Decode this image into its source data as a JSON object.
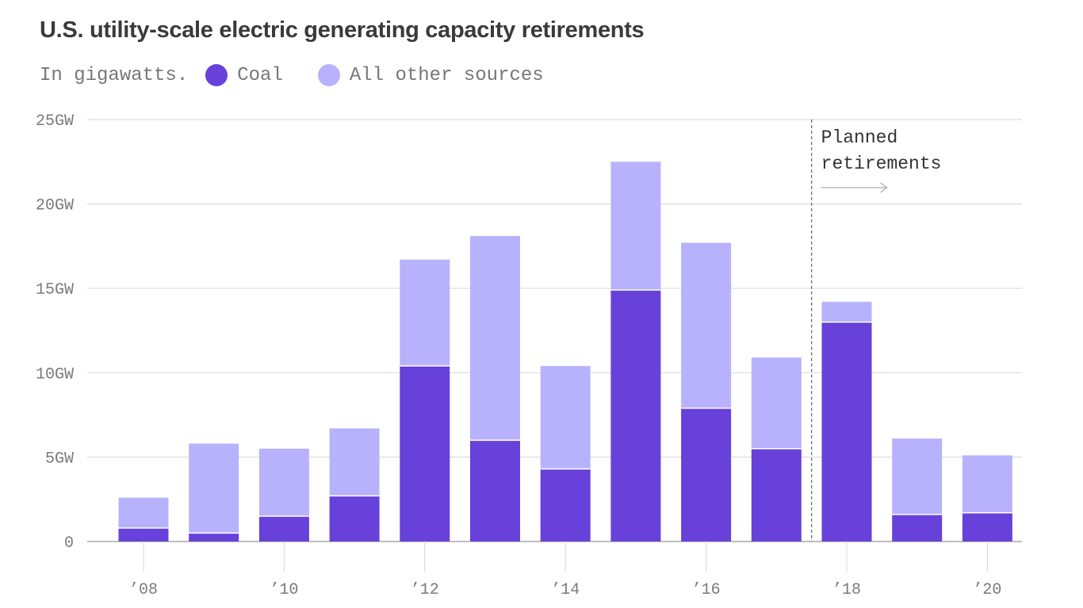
{
  "colors": {
    "coal": "#6741d9",
    "other": "#b8b2fc",
    "grid": "#dddddd",
    "axis": "#999999",
    "marker": "#666666"
  },
  "chart_data": {
    "type": "bar",
    "stacked": true,
    "title": "U.S. utility-scale electric generating capacity retirements",
    "subtitle": "In gigawatts.",
    "categories": [
      "2008",
      "2009",
      "2010",
      "2011",
      "2012",
      "2013",
      "2014",
      "2015",
      "2016",
      "2017",
      "2018",
      "2019",
      "2020"
    ],
    "series": [
      {
        "name": "Coal",
        "values": [
          0.8,
          0.5,
          1.5,
          2.7,
          10.4,
          6.0,
          4.3,
          14.9,
          7.9,
          5.5,
          13.0,
          1.6,
          1.7
        ]
      },
      {
        "name": "All other sources",
        "values": [
          1.8,
          5.3,
          4.0,
          4.0,
          6.3,
          12.1,
          6.1,
          7.6,
          9.8,
          5.4,
          1.2,
          4.5,
          3.4
        ]
      }
    ],
    "ylim": [
      0,
      25
    ],
    "yticks": [
      {
        "value": 0,
        "label": "0"
      },
      {
        "value": 5,
        "label": "5GW"
      },
      {
        "value": 10,
        "label": "10GW"
      },
      {
        "value": 15,
        "label": "15GW"
      },
      {
        "value": 20,
        "label": "20GW"
      },
      {
        "value": 25,
        "label": "25GW"
      }
    ],
    "xticks": [
      {
        "index": 0,
        "label": "’08"
      },
      {
        "index": 2,
        "label": "’10"
      },
      {
        "index": 4,
        "label": "’12"
      },
      {
        "index": 6,
        "label": "’14"
      },
      {
        "index": 8,
        "label": "’16"
      },
      {
        "index": 10,
        "label": "’18"
      },
      {
        "index": 12,
        "label": "’20"
      }
    ],
    "annotation": {
      "lines": [
        "Planned",
        "retirements"
      ],
      "start_index": 10
    },
    "xlabel": "",
    "ylabel": ""
  }
}
